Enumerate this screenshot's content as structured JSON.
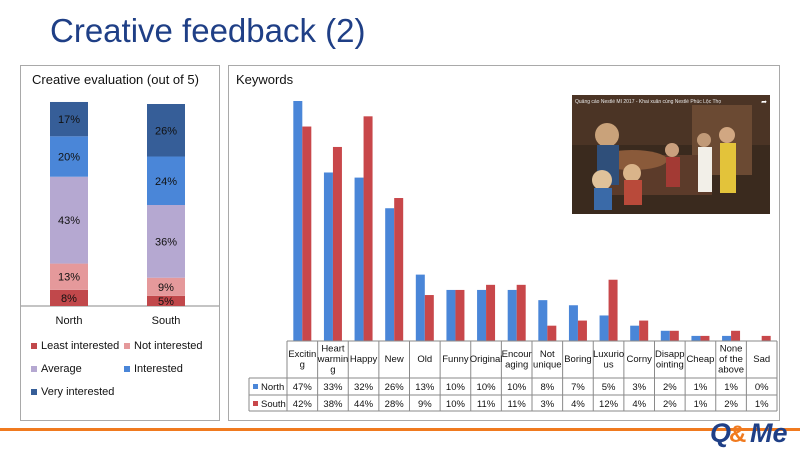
{
  "page": {
    "title": "Creative feedback (2)",
    "brand": "Q&Me"
  },
  "colors": {
    "title": "#1f3f86",
    "least_interested": "#c1484b",
    "not_interested": "#e5999b",
    "average": "#b5a8d1",
    "interested": "#4a86d8",
    "very_interested": "#365e98",
    "north": "#4a86d8",
    "south": "#c8474a",
    "accent": "#f07a1f"
  },
  "video": {
    "title": "Quảng cáo Nestlé MI 2017 - Khai xuân cùng Nestlé Phúc Lộc Thọ",
    "share_icon": "share-icon"
  },
  "chart_data": [
    {
      "type": "bar",
      "stacked": true,
      "title": "Creative evaluation (out of 5)",
      "categories": [
        "North",
        "South"
      ],
      "series": [
        {
          "name": "Least interested",
          "values": [
            8,
            5
          ]
        },
        {
          "name": "Not interested",
          "values": [
            13,
            9
          ]
        },
        {
          "name": "Average",
          "values": [
            43,
            36
          ]
        },
        {
          "name": "Interested",
          "values": [
            20,
            24
          ]
        },
        {
          "name": "Very interested",
          "values": [
            17,
            26
          ]
        }
      ],
      "value_labels": [
        [
          "8%",
          "13%",
          "43%",
          "20%",
          "17%"
        ],
        [
          "5%",
          "9%",
          "36%",
          "24%",
          "26%"
        ]
      ],
      "ylim": [
        0,
        100
      ],
      "legend_position": "bottom"
    },
    {
      "type": "bar",
      "title": "Keywords",
      "categories": [
        "Exciting",
        "Heart warming",
        "Happy",
        "New",
        "Old",
        "Funny",
        "Original",
        "Encouraging",
        "Not unique",
        "Boring",
        "Luxurious",
        "Corny",
        "Disappointing",
        "Cheap",
        "None of the above",
        "Sad"
      ],
      "category_labels": [
        [
          "Excitin",
          "g"
        ],
        [
          "Heart",
          "warmin",
          "g"
        ],
        [
          "Happy"
        ],
        [
          "New"
        ],
        [
          "Old"
        ],
        [
          "Funny"
        ],
        [
          "Original"
        ],
        [
          "Encour",
          "aging"
        ],
        [
          "Not",
          "unique"
        ],
        [
          "Boring"
        ],
        [
          "Luxurio",
          "us"
        ],
        [
          "Corny"
        ],
        [
          "Disapp",
          "ointing"
        ],
        [
          "Cheap"
        ],
        [
          "None",
          "of the",
          "above"
        ],
        [
          "Sad"
        ]
      ],
      "series": [
        {
          "name": "North",
          "values": [
            47,
            33,
            32,
            26,
            13,
            10,
            10,
            10,
            8,
            7,
            5,
            3,
            2,
            1,
            1,
            0
          ],
          "labels": [
            "47%",
            "33%",
            "32%",
            "26%",
            "13%",
            "10%",
            "10%",
            "10%",
            "8%",
            "7%",
            "5%",
            "3%",
            "2%",
            "1%",
            "1%",
            "0%"
          ]
        },
        {
          "name": "South",
          "values": [
            42,
            38,
            44,
            28,
            9,
            10,
            11,
            11,
            3,
            4,
            12,
            4,
            2,
            1,
            2,
            1
          ],
          "labels": [
            "42%",
            "38%",
            "44%",
            "28%",
            "9%",
            "10%",
            "11%",
            "11%",
            "3%",
            "4%",
            "12%",
            "4%",
            "2%",
            "1%",
            "2%",
            "1%"
          ]
        }
      ],
      "ylim": [
        0,
        47
      ],
      "data_table": true
    }
  ]
}
